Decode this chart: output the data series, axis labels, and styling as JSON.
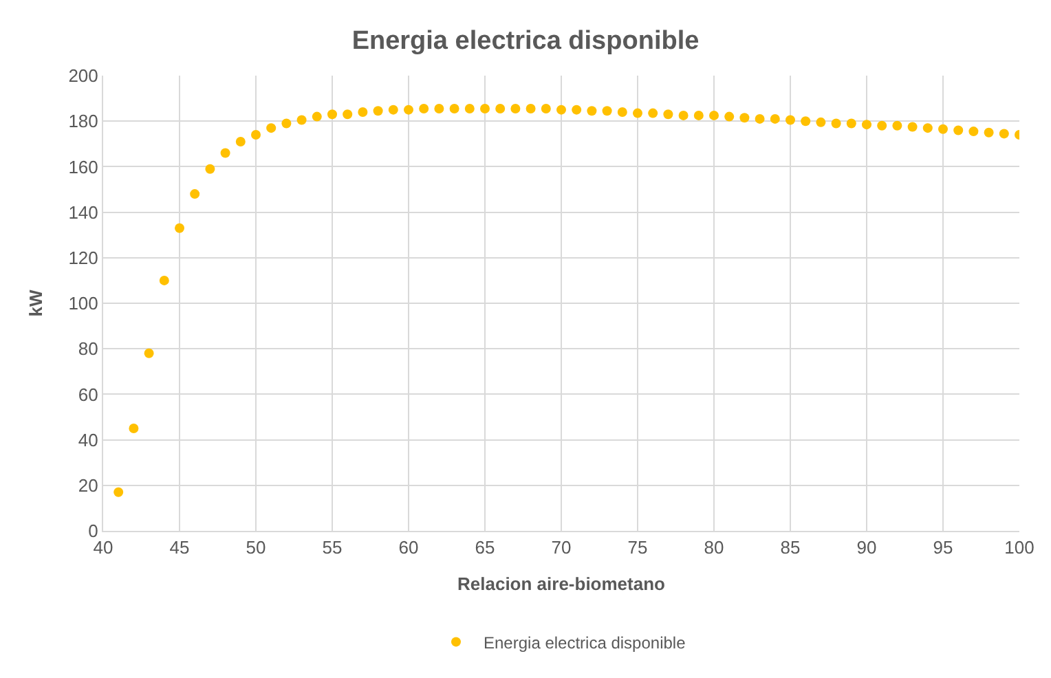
{
  "chart_data": {
    "type": "scatter",
    "title": "Energia electrica disponible",
    "xlabel": "Relacion aire-biometano",
    "ylabel": "kW",
    "x": [
      41,
      42,
      43,
      44,
      45,
      46,
      47,
      48,
      49,
      50,
      51,
      52,
      53,
      54,
      55,
      56,
      57,
      58,
      59,
      60,
      61,
      62,
      63,
      64,
      65,
      66,
      67,
      68,
      69,
      70,
      71,
      72,
      73,
      74,
      75,
      76,
      77,
      78,
      79,
      80,
      81,
      82,
      83,
      84,
      85,
      86,
      87,
      88,
      89,
      90,
      91,
      92,
      93,
      94,
      95,
      96,
      97,
      98,
      99,
      100
    ],
    "series": [
      {
        "name": "Energia electrica disponible",
        "color": "#ffc000",
        "values": [
          17,
          45,
          78,
          110,
          133,
          148,
          159,
          166,
          171,
          174,
          177,
          179,
          180.5,
          182,
          183,
          183,
          184,
          184.5,
          185,
          185,
          185.5,
          185.5,
          185.5,
          185.5,
          185.5,
          185.5,
          185.5,
          185.5,
          185.5,
          185,
          185,
          184.5,
          184.5,
          184,
          183.5,
          183.5,
          183,
          182.5,
          182.5,
          182.5,
          182,
          181.5,
          181,
          181,
          180.5,
          180,
          179.5,
          179,
          179,
          178.5,
          178,
          178,
          177.5,
          177,
          176.5,
          176,
          175.5,
          175,
          174.5,
          174
        ]
      }
    ],
    "xlim": [
      40,
      100
    ],
    "xticks": [
      40,
      45,
      50,
      55,
      60,
      65,
      70,
      75,
      80,
      85,
      90,
      95,
      100
    ],
    "ylim": [
      0,
      200
    ],
    "yticks": [
      0,
      20,
      40,
      60,
      80,
      100,
      120,
      140,
      160,
      180,
      200
    ],
    "grid": true,
    "legend": "bottom",
    "marker": "circle"
  }
}
